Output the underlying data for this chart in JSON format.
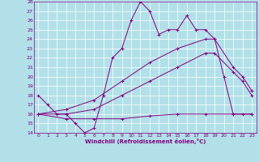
{
  "xlabel": "Windchill (Refroidissement éolien,°C)",
  "background_color": "#b2e0e8",
  "grid_color": "#ffffff",
  "line_color": "#800080",
  "xlim": [
    -0.5,
    23.5
  ],
  "ylim": [
    14,
    28
  ],
  "yticks": [
    14,
    15,
    16,
    17,
    18,
    19,
    20,
    21,
    22,
    23,
    24,
    25,
    26,
    27,
    28
  ],
  "xticks": [
    0,
    1,
    2,
    3,
    4,
    5,
    6,
    7,
    8,
    9,
    10,
    11,
    12,
    13,
    14,
    15,
    16,
    17,
    18,
    19,
    20,
    21,
    22,
    23
  ],
  "line1_x": [
    0,
    1,
    2,
    3,
    4,
    5,
    6,
    7,
    8,
    9,
    10,
    11,
    12,
    13,
    14,
    15,
    16,
    17,
    18,
    19,
    20,
    21,
    22,
    23
  ],
  "line1_y": [
    18,
    17,
    16,
    16,
    15,
    14,
    14.5,
    18,
    22,
    23,
    26,
    28,
    27,
    24.5,
    25,
    25,
    26.5,
    25,
    25,
    24,
    20,
    16,
    16,
    16
  ],
  "line2_x": [
    0,
    3,
    6,
    9,
    12,
    15,
    18,
    19,
    21,
    22,
    23
  ],
  "line2_y": [
    16,
    16.5,
    17.5,
    19.5,
    21.5,
    23,
    24,
    24,
    21,
    20,
    18.5
  ],
  "line3_x": [
    0,
    3,
    6,
    9,
    12,
    15,
    18,
    19,
    21,
    22,
    23
  ],
  "line3_y": [
    16,
    16,
    16.5,
    18,
    19.5,
    21,
    22.5,
    22.5,
    20.5,
    19.5,
    18
  ],
  "line4_x": [
    0,
    3,
    6,
    9,
    12,
    15,
    18,
    21,
    23
  ],
  "line4_y": [
    16,
    15.5,
    15.5,
    15.5,
    15.8,
    16,
    16,
    16,
    16
  ]
}
